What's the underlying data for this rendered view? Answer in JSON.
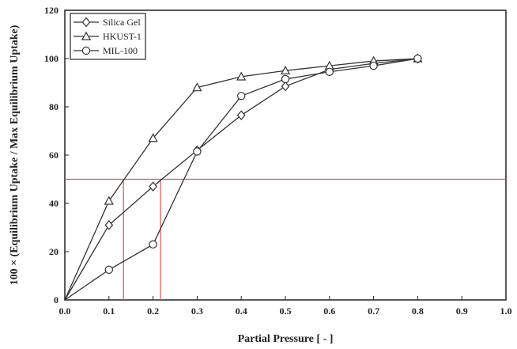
{
  "chart_data": {
    "type": "line",
    "title": "",
    "xlabel": "Partial Pressure [ - ]",
    "ylabel": "100 × (Equilibrium Uptake / Max Equilibrium Uptake)",
    "xlim": [
      0,
      1
    ],
    "ylim": [
      0,
      120
    ],
    "x_ticks": [
      "0.0",
      "0.1",
      "0.2",
      "0.3",
      "0.4",
      "0.5",
      "0.6",
      "0.7",
      "0.8",
      "0.9",
      "1.0"
    ],
    "y_ticks": [
      "0",
      "20",
      "40",
      "60",
      "80",
      "100",
      "120"
    ],
    "grid": false,
    "legend_position": "top-left",
    "series": [
      {
        "name": "Silica Gel",
        "marker": "diamond",
        "x": [
          0.0,
          0.1,
          0.2,
          0.3,
          0.4,
          0.5,
          0.6,
          0.7,
          0.8
        ],
        "y": [
          0,
          31,
          47,
          62,
          76.5,
          88.5,
          95.5,
          98,
          100
        ]
      },
      {
        "name": "HKUST-1",
        "marker": "triangle",
        "x": [
          0.0,
          0.1,
          0.2,
          0.3,
          0.4,
          0.5,
          0.6,
          0.7,
          0.8
        ],
        "y": [
          0,
          41,
          67,
          88,
          92.5,
          95,
          97,
          99,
          100
        ]
      },
      {
        "name": "MIL-100",
        "marker": "circle",
        "x": [
          0.0,
          0.1,
          0.2,
          0.3,
          0.4,
          0.5,
          0.6,
          0.7,
          0.8
        ],
        "y": [
          0,
          12.5,
          23,
          61.5,
          84.5,
          91.5,
          94.5,
          97,
          100
        ]
      }
    ],
    "reference_lines": [
      {
        "type": "horizontal",
        "y": 50,
        "color": "#d9534f"
      },
      {
        "type": "vertical",
        "x": 0.133,
        "y_to": 50,
        "color": "#d9534f"
      },
      {
        "type": "vertical",
        "x": 0.217,
        "y_to": 50,
        "color": "#d9534f"
      }
    ],
    "colors": {
      "series_line": "#333333",
      "reference": "#d9534f"
    }
  }
}
